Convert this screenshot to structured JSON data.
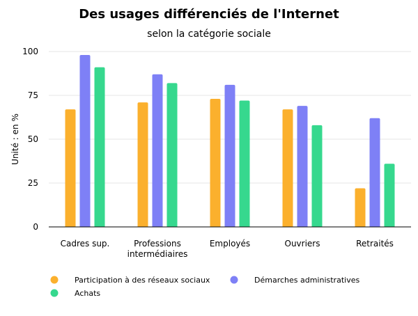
{
  "chart_data": {
    "type": "bar",
    "title": "Des usages différenciés de l'Internet",
    "subtitle": "selon la catégorie sociale",
    "ylabel": "Unité : en %",
    "xlabel": "",
    "ylim": [
      0,
      100
    ],
    "yticks": [
      0,
      25,
      50,
      75,
      100
    ],
    "grid": true,
    "legend_position": "bottom",
    "categories": [
      [
        "Cadres sup."
      ],
      [
        "Professions",
        "intermédiaires"
      ],
      [
        "Employés"
      ],
      [
        "Ouvriers"
      ],
      [
        "Retraités"
      ]
    ],
    "series": [
      {
        "name": "Participation à des réseaux sociaux",
        "color": "#fbb02d",
        "values": [
          67,
          71,
          73,
          67,
          22
        ]
      },
      {
        "name": "Démarches administratives",
        "color": "#7e80f6",
        "values": [
          98,
          87,
          81,
          69,
          62
        ]
      },
      {
        "name": "Achats",
        "color": "#36d88e",
        "values": [
          91,
          82,
          72,
          58,
          36
        ]
      }
    ]
  }
}
